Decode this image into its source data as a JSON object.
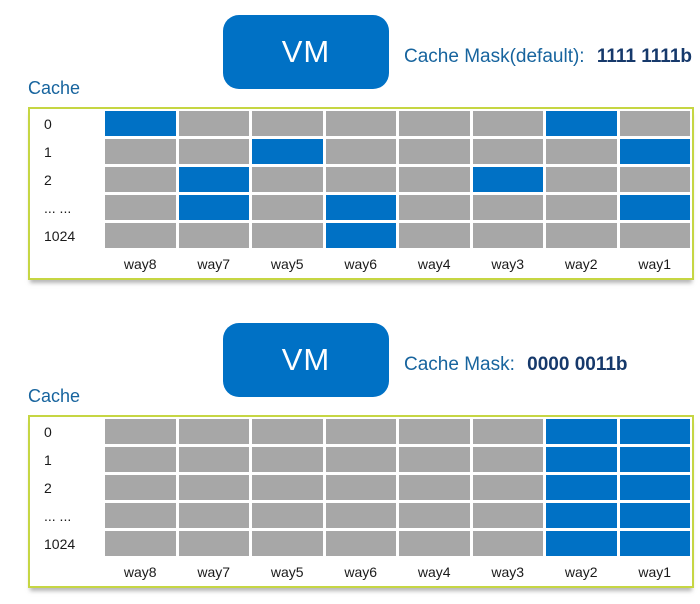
{
  "colors": {
    "vm_blue": "#0071c5",
    "cell_blue": "#0071c5",
    "cell_gray": "#a7a7a7",
    "table_border": "#c6d643",
    "label_blue": "#17649e",
    "mask_navy": "#16396b"
  },
  "diagrams": [
    {
      "vm_label": "VM",
      "mask_label": "Cache Mask(default):",
      "mask_value": "1111 1111b",
      "cache_label": "Cache",
      "row_labels": [
        "0",
        "1",
        "2",
        "... ...",
        "1024"
      ],
      "col_labels": [
        "way8",
        "way7",
        "way5",
        "way6",
        "way4",
        "way3",
        "way2",
        "way1"
      ],
      "highlighted_columns_per_row": [
        [
          0,
          6
        ],
        [
          2,
          7
        ],
        [
          1,
          5
        ],
        [
          1,
          3,
          7
        ],
        [
          3
        ]
      ]
    },
    {
      "vm_label": "VM",
      "mask_label": "Cache Mask:",
      "mask_value": "0000 0011b",
      "cache_label": "Cache",
      "row_labels": [
        "0",
        "1",
        "2",
        "... ...",
        "1024"
      ],
      "col_labels": [
        "way8",
        "way7",
        "way5",
        "way6",
        "way4",
        "way3",
        "way2",
        "way1"
      ],
      "highlighted_columns_per_row": [
        [
          6,
          7
        ],
        [
          6,
          7
        ],
        [
          6,
          7
        ],
        [
          6,
          7
        ],
        [
          6,
          7
        ]
      ]
    }
  ]
}
